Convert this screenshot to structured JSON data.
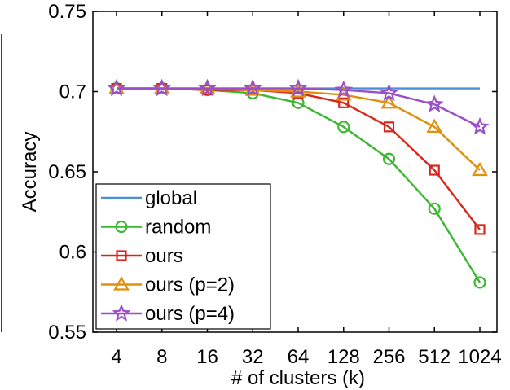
{
  "chart_data": {
    "type": "line",
    "title": "",
    "xlabel": "# of clusters (k)",
    "ylabel": "Accuracy",
    "categories": [
      "4",
      "8",
      "16",
      "32",
      "64",
      "128",
      "256",
      "512",
      "1024"
    ],
    "ylim": [
      0.55,
      0.75
    ],
    "yticks": [
      "0.55",
      "0.6",
      "0.65",
      "0.7",
      "0.75"
    ],
    "grid": false,
    "legend_position": "bottom-left",
    "series": [
      {
        "name": "global",
        "color": "#4a90d9",
        "marker": "none",
        "values": [
          0.702,
          0.702,
          0.702,
          0.702,
          0.702,
          0.702,
          0.702,
          0.702,
          0.702
        ]
      },
      {
        "name": "random",
        "color": "#3cb832",
        "marker": "circle",
        "values": [
          0.702,
          0.702,
          0.701,
          0.699,
          0.693,
          0.678,
          0.658,
          0.627,
          0.581
        ]
      },
      {
        "name": "ours",
        "color": "#d9271c",
        "marker": "square",
        "values": [
          0.702,
          0.702,
          0.701,
          0.701,
          0.699,
          0.693,
          0.678,
          0.651,
          0.614
        ]
      },
      {
        "name": "ours (p=2)",
        "color": "#e0900c",
        "marker": "triangle",
        "values": [
          0.702,
          0.702,
          0.702,
          0.701,
          0.7,
          0.698,
          0.693,
          0.678,
          0.651
        ]
      },
      {
        "name": "ours (p=4)",
        "color": "#9b4fc7",
        "marker": "star",
        "values": [
          0.702,
          0.702,
          0.702,
          0.702,
          0.702,
          0.701,
          0.699,
          0.692,
          0.678
        ]
      }
    ]
  }
}
